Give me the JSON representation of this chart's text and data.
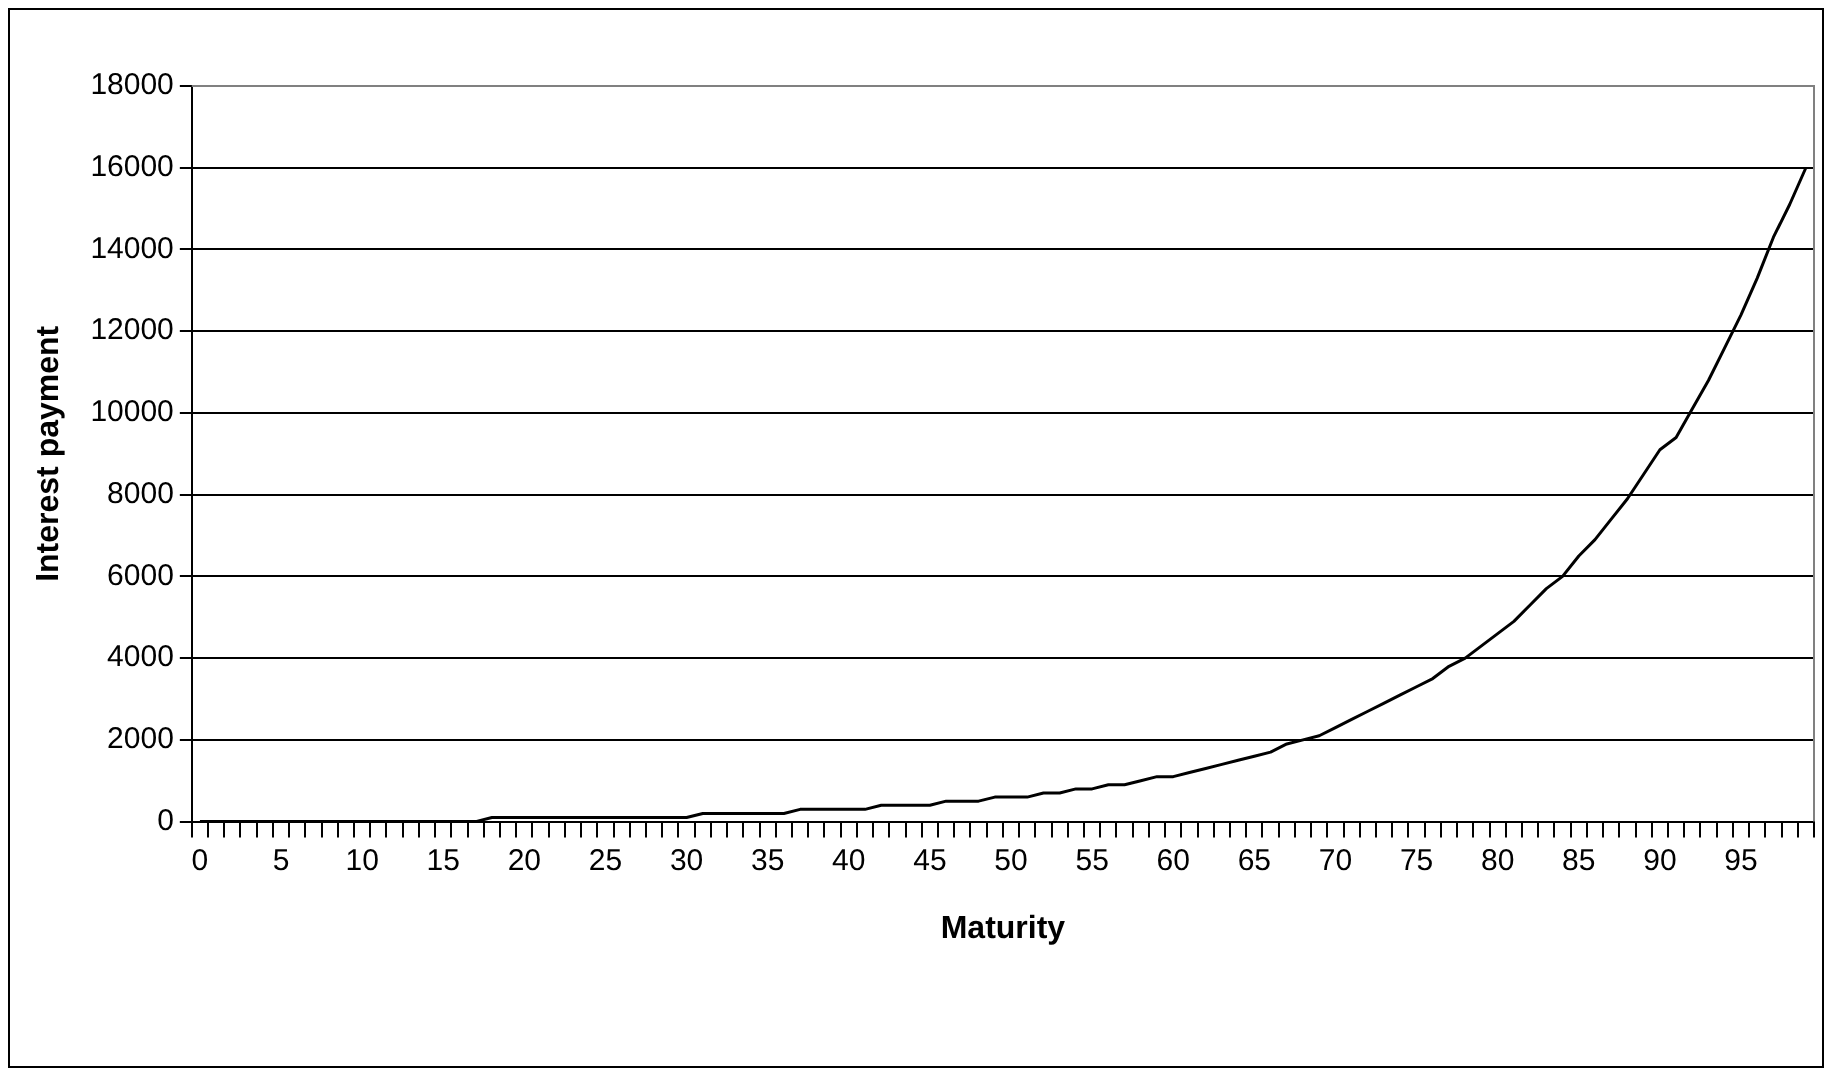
{
  "chart_data": {
    "type": "line",
    "xlabel": "Maturity",
    "ylabel": "Interest payment",
    "categories": [
      "0",
      null,
      null,
      null,
      null,
      "5",
      null,
      null,
      null,
      null,
      "10",
      null,
      null,
      null,
      null,
      "15",
      null,
      null,
      null,
      null,
      "20",
      null,
      null,
      null,
      null,
      "25",
      null,
      null,
      null,
      null,
      "30",
      null,
      null,
      null,
      null,
      "35",
      null,
      null,
      null,
      null,
      "40",
      null,
      null,
      null,
      null,
      "45",
      null,
      null,
      null,
      null,
      "50",
      null,
      null,
      null,
      null,
      "55",
      null,
      null,
      null,
      null,
      "60",
      null,
      null,
      null,
      null,
      "65",
      null,
      null,
      null,
      null,
      "70",
      null,
      null,
      null,
      null,
      "75",
      null,
      null,
      null,
      null,
      "80",
      null,
      null,
      null,
      null,
      "85",
      null,
      null,
      null,
      null,
      "90",
      null,
      null,
      null,
      null,
      "95",
      null,
      null,
      null,
      null
    ],
    "series": [
      {
        "color": "#000000",
        "values": [
          0,
          0,
          0,
          0,
          0,
          0,
          0,
          0,
          0,
          0,
          0,
          0,
          0,
          0,
          0,
          0,
          0,
          0,
          100,
          100,
          100,
          100,
          100,
          100,
          100,
          100,
          100,
          100,
          100,
          100,
          100,
          200,
          200,
          200,
          200,
          200,
          200,
          300,
          300,
          300,
          300,
          300,
          400,
          400,
          400,
          400,
          500,
          500,
          500,
          600,
          600,
          600,
          700,
          700,
          800,
          800,
          900,
          900,
          1000,
          1100,
          1100,
          1200,
          1300,
          1400,
          1500,
          1600,
          1700,
          1900,
          2000,
          2100,
          2300,
          2500,
          2700,
          2900,
          3100,
          3300,
          3500,
          3800,
          4000,
          4300,
          4600,
          4900,
          5300,
          5700,
          6000,
          6500,
          6900,
          7400,
          7900,
          8500,
          9100,
          9400,
          10100,
          10800,
          11600,
          12400,
          13300,
          14300,
          15100,
          16000
        ]
      }
    ],
    "ylim": [
      0,
      18000
    ],
    "yticks": [
      0,
      2000,
      4000,
      6000,
      8000,
      10000,
      12000,
      14000,
      16000,
      18000
    ],
    "grid": "y",
    "legend": false,
    "marker": "none",
    "line_style": "solid"
  }
}
